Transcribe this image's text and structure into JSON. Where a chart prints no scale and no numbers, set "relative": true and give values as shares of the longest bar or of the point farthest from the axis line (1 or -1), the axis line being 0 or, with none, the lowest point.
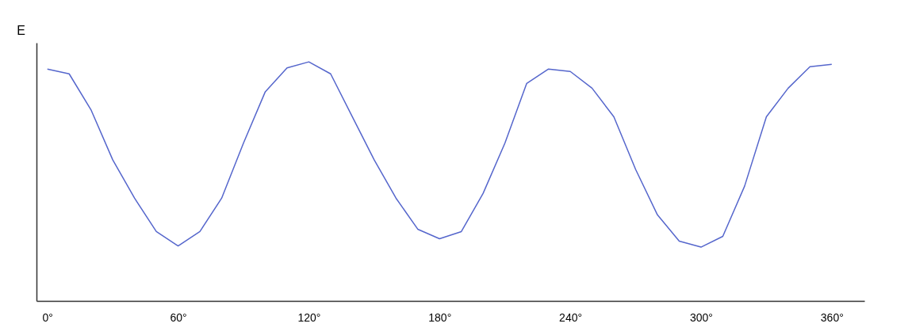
{
  "chart_data": {
    "type": "line",
    "relative": true,
    "ylabel": "E",
    "xlim": [
      -5,
      375
    ],
    "xticks": [
      {
        "value": 0,
        "label": "0°"
      },
      {
        "value": 60,
        "label": "60°"
      },
      {
        "value": 120,
        "label": "120°"
      },
      {
        "value": 180,
        "label": "180°"
      },
      {
        "value": 240,
        "label": "240°"
      },
      {
        "value": 300,
        "label": "300°"
      },
      {
        "value": 360,
        "label": "360°"
      }
    ],
    "x": [
      0,
      10,
      20,
      30,
      40,
      50,
      60,
      70,
      80,
      90,
      100,
      110,
      120,
      130,
      140,
      150,
      160,
      170,
      180,
      190,
      200,
      210,
      220,
      230,
      240,
      250,
      260,
      270,
      280,
      290,
      300,
      310,
      320,
      330,
      340,
      350,
      360
    ],
    "series": [
      {
        "color": "#5566cc",
        "values": [
          0.97,
          0.95,
          0.8,
          0.59,
          0.43,
          0.29,
          0.23,
          0.29,
          0.43,
          0.66,
          0.875,
          0.975,
          1.0,
          0.95,
          0.77,
          0.59,
          0.43,
          0.3,
          0.26,
          0.29,
          0.45,
          0.66,
          0.91,
          0.97,
          0.96,
          0.89,
          0.77,
          0.55,
          0.36,
          0.25,
          0.225,
          0.27,
          0.48,
          0.77,
          0.89,
          0.98,
          0.99
        ]
      }
    ],
    "grid": false,
    "legend": false,
    "marker": "none",
    "line_style": "solid"
  }
}
